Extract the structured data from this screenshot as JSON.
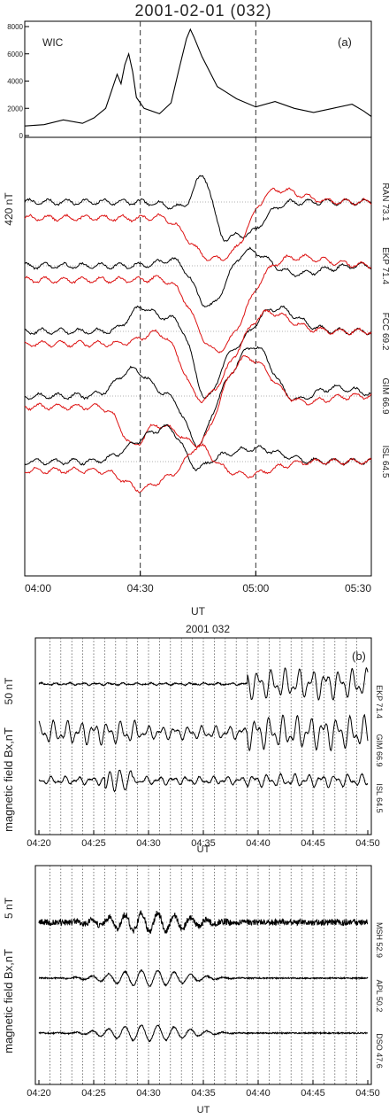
{
  "figure_title": "2001-02-01 (032)",
  "chart_data": [
    {
      "type": "line",
      "panel_label": "(a)",
      "ylabel": "WIC",
      "ylim": [
        0,
        8000
      ],
      "yticks": [
        "0",
        "2000",
        "4000",
        "6000",
        "8000"
      ],
      "x": [
        0,
        5,
        10,
        15,
        18,
        21,
        24,
        25,
        26,
        27,
        28,
        29,
        31,
        35,
        38,
        40,
        42,
        43,
        44,
        46,
        50,
        55,
        60,
        65,
        70,
        75,
        80,
        85,
        88,
        90
      ],
      "series": [
        {
          "values": [
            700,
            800,
            1150,
            900,
            1300,
            2000,
            4500,
            3800,
            5200,
            6000,
            4700,
            2800,
            2000,
            1600,
            2400,
            4800,
            7100,
            7800,
            7200,
            5800,
            3600,
            2700,
            2100,
            2500,
            2000,
            1700,
            2000,
            2300,
            1800,
            1400
          ],
          "color": "#000000"
        }
      ],
      "vlines_x": [
        30,
        60
      ]
    },
    {
      "type": "line",
      "scale_label": "420 nT",
      "xlabel": "UT",
      "xticks": [
        "04:00",
        "04:30",
        "05:00",
        "05:30"
      ],
      "stations": [
        "RAN 73.1",
        "EKP 71.4",
        "FCC 69.2",
        "GIM 66.9",
        "ISL 64.5"
      ],
      "black_color": "#000000",
      "red_color": "#dd1111",
      "vlines_x": [
        30,
        60
      ]
    },
    {
      "type": "line",
      "panel_label": "(b)",
      "title": "2001 032",
      "scale_label": "50 nT",
      "ylabel": "magnetic field Bx,nT",
      "xlabel": "UT",
      "xticks": [
        "04:20",
        "04:25",
        "04:30",
        "04:35",
        "04:40",
        "04:45",
        "04:50"
      ],
      "stations": [
        "EKP 71.4",
        "GIM 66.9",
        "ISL 64.5"
      ]
    },
    {
      "type": "line",
      "scale_label": "5 nT",
      "ylabel": "magnetic field Bx,nT",
      "xlabel": "UT",
      "xticks": [
        "04:20",
        "04:25",
        "04:30",
        "04:35",
        "04:40",
        "04:45",
        "04:50"
      ],
      "stations": [
        "MSH 52.9",
        "APL 50.2",
        "DSO 47.6"
      ]
    }
  ]
}
